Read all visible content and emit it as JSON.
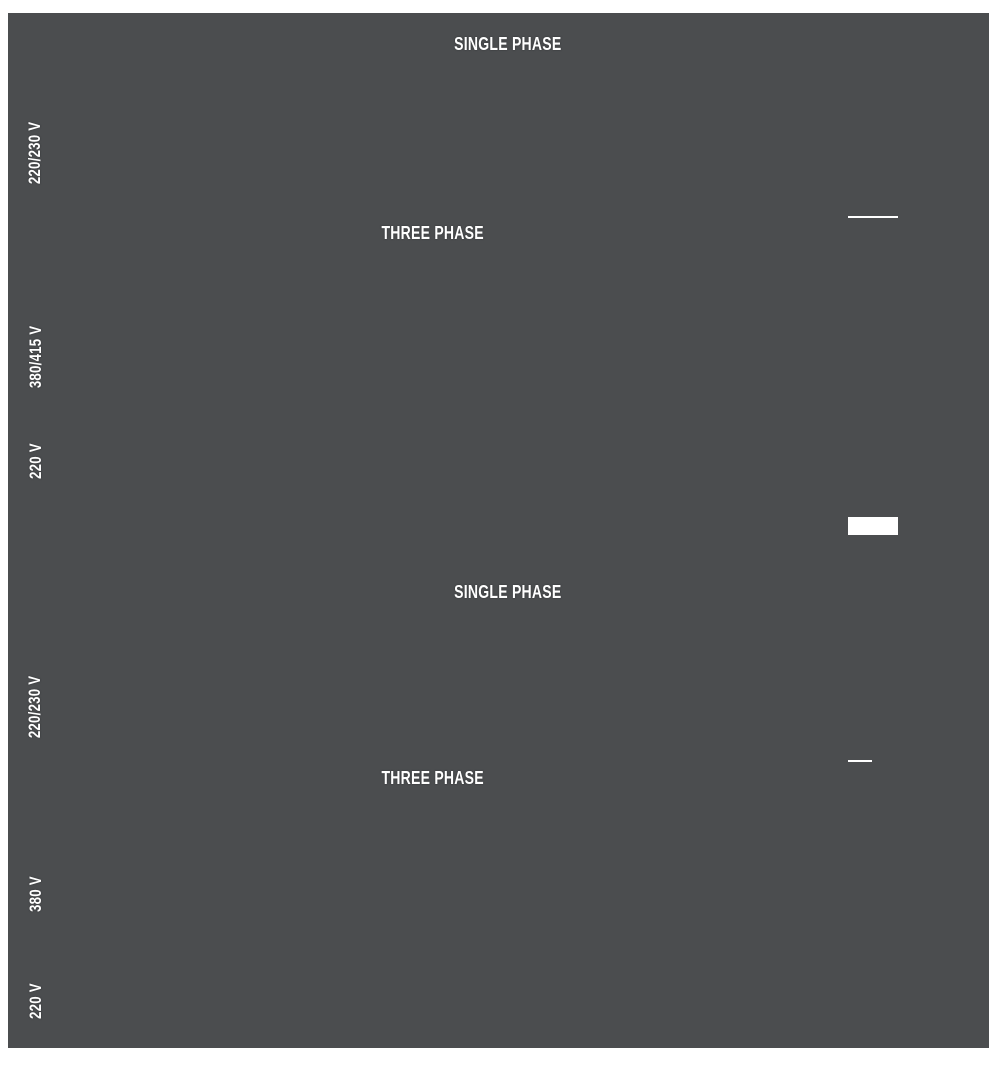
{
  "colors": {
    "page_background": "#FFFFFF",
    "panel_background": "#4B4D4F",
    "label_text": "#FFFFFF",
    "highlight": "#FFFFFF"
  },
  "panel": {
    "description": "Dark scanned wiring-diagram page with white section and voltage labels",
    "sections": [
      {
        "title": "SINGLE PHASE",
        "side_labels": [
          {
            "text": "220/230 V"
          }
        ]
      },
      {
        "title": "THREE PHASE",
        "side_labels": [
          {
            "text": "380/415 V"
          },
          {
            "text": "220 V"
          }
        ]
      },
      {
        "title": "SINGLE PHASE",
        "side_labels": [
          {
            "text": "220/230 V"
          }
        ]
      },
      {
        "title": "THREE PHASE",
        "side_labels": [
          {
            "text": "380 V"
          },
          {
            "text": "220 V"
          }
        ]
      }
    ]
  }
}
